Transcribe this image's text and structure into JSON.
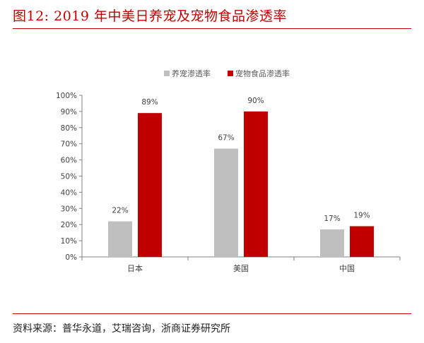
{
  "figure": {
    "title": "图12:   2019 年中美日养宠及宠物食品渗透率",
    "source": "资料来源：普华永道，艾瑞咨询，浙商证券研究所"
  },
  "colors": {
    "accent": "#c00000",
    "series_1": "#bfbfbf",
    "series_2": "#c00000"
  },
  "chart_data": {
    "type": "bar",
    "title": "",
    "xlabel": "",
    "ylabel": "",
    "categories": [
      "日本",
      "美国",
      "中国"
    ],
    "series": [
      {
        "name": "养宠渗透率",
        "values": [
          22,
          67,
          17
        ],
        "labels": [
          "22%",
          "67%",
          "17%"
        ]
      },
      {
        "name": "宠物食品渗透率",
        "values": [
          89,
          90,
          19
        ],
        "labels": [
          "89%",
          "90%",
          "19%"
        ]
      }
    ],
    "ylim": [
      0,
      100
    ],
    "yticks": [
      "0%",
      "10%",
      "20%",
      "30%",
      "40%",
      "50%",
      "60%",
      "70%",
      "80%",
      "90%",
      "100%"
    ],
    "legend_position": "top",
    "grid": false
  }
}
